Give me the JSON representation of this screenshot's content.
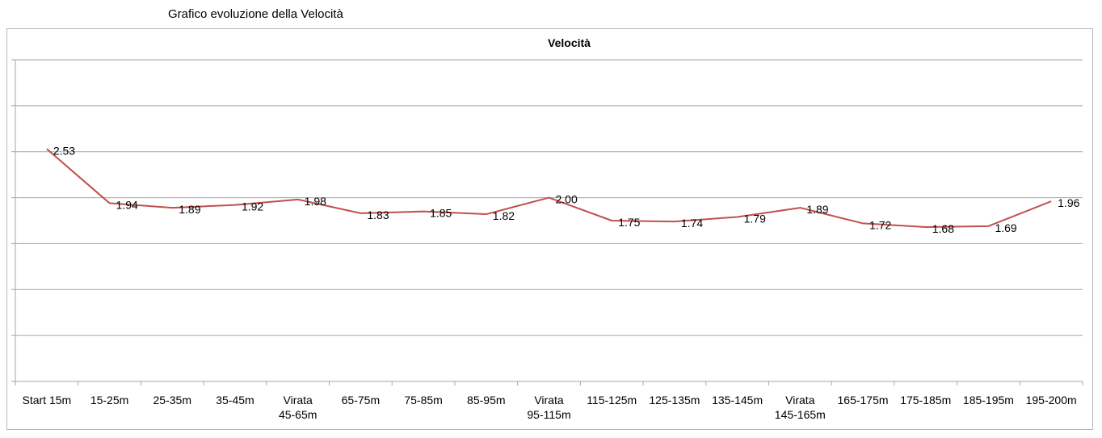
{
  "page": {
    "heading": "Grafico evoluzione della Velocità"
  },
  "chart_data": {
    "type": "line",
    "title": "Velocità",
    "xlabel": "",
    "ylabel": "",
    "categories": [
      "Start 15m",
      "15-25m",
      "25-35m",
      "35-45m",
      "Virata 45-65m",
      "65-75m",
      "75-85m",
      "85-95m",
      "Virata 95-115m",
      "115-125m",
      "125-135m",
      "135-145m",
      "Virata 145-165m",
      "165-175m",
      "175-185m",
      "185-195m",
      "195-200m"
    ],
    "series": [
      {
        "values": [
          2.53,
          1.94,
          1.89,
          1.92,
          1.98,
          1.83,
          1.85,
          1.82,
          2.0,
          1.75,
          1.74,
          1.79,
          1.89,
          1.72,
          1.68,
          1.69,
          1.96
        ],
        "labels": [
          "2.53",
          "1.94",
          "1.89",
          "1.92",
          "1.98",
          "1.83",
          "1.85",
          "1.82",
          "2.00",
          "1.75",
          "1.74",
          "1.79",
          "1.89",
          "1.72",
          "1.68",
          "1.69",
          "1.96"
        ],
        "color": "#c0504d"
      }
    ],
    "ylim": [
      0,
      3.5
    ],
    "y_gridline_step": 0.5,
    "y_tick_labels_shown": false,
    "grid": true,
    "legend": "none",
    "colors": {
      "line": "#c0504d",
      "grid": "#a6a6a6",
      "axis": "#a6a6a6"
    }
  }
}
